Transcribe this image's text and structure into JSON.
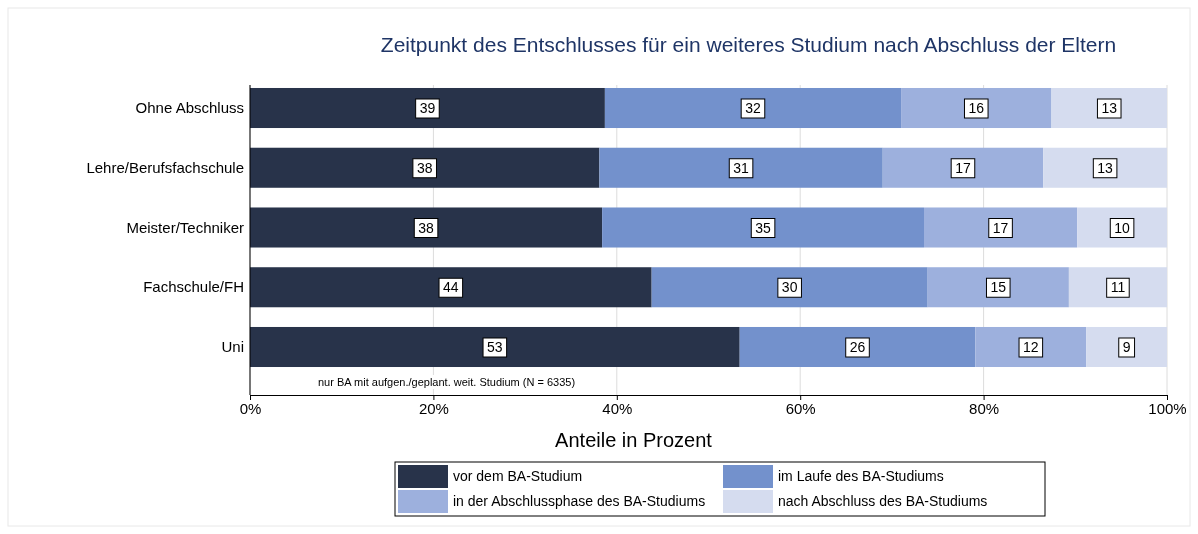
{
  "chart_data": {
    "type": "bar",
    "orientation": "horizontal",
    "stacked": true,
    "title": "Zeitpunkt des Entschlusses für ein weiteres Studium nach Abschluss der Eltern",
    "xlabel": "Anteile in Prozent",
    "categories": [
      "Ohne Abschluss",
      "Lehre/Berufsfachschule",
      "Meister/Techniker",
      "Fachschule/FH",
      "Uni"
    ],
    "series": [
      {
        "name": "vor dem BA-Studium",
        "color": "#28334a",
        "values": [
          38.7,
          38.1,
          38.4,
          43.8,
          53.4
        ],
        "value_labels": [
          "39",
          "38",
          "38",
          "44",
          "53"
        ]
      },
      {
        "name": "im Laufe des BA-Studiums",
        "color": "#7391cc",
        "values": [
          32.3,
          30.9,
          35.1,
          30.1,
          25.7
        ],
        "value_labels": [
          "32",
          "31",
          "35",
          "30",
          "26"
        ]
      },
      {
        "name": "in der Abschlussphase des BA-Studiums",
        "color": "#9db0dd",
        "values": [
          16.4,
          17.5,
          16.7,
          15.4,
          12.1
        ],
        "value_labels": [
          "16",
          "17",
          "17",
          "15",
          "12"
        ]
      },
      {
        "name": "nach Abschluss des BA-Studiums",
        "color": "#d5dcef",
        "values": [
          12.6,
          13.5,
          9.8,
          10.7,
          8.8
        ],
        "value_labels": [
          "13",
          "13",
          "10",
          "11",
          "9"
        ]
      }
    ],
    "xlim": [
      0,
      100
    ],
    "xticks": [
      {
        "value": 0,
        "label": "0%"
      },
      {
        "value": 20,
        "label": "20%"
      },
      {
        "value": 40,
        "label": "40%"
      },
      {
        "value": 60,
        "label": "60%"
      },
      {
        "value": 80,
        "label": "80%"
      },
      {
        "value": 100,
        "label": "100%"
      }
    ],
    "grid": "x",
    "legend": "bottom",
    "annotations": [
      "nur BA mit aufgen./geplant. weit. Studium (N = 6335)"
    ]
  }
}
